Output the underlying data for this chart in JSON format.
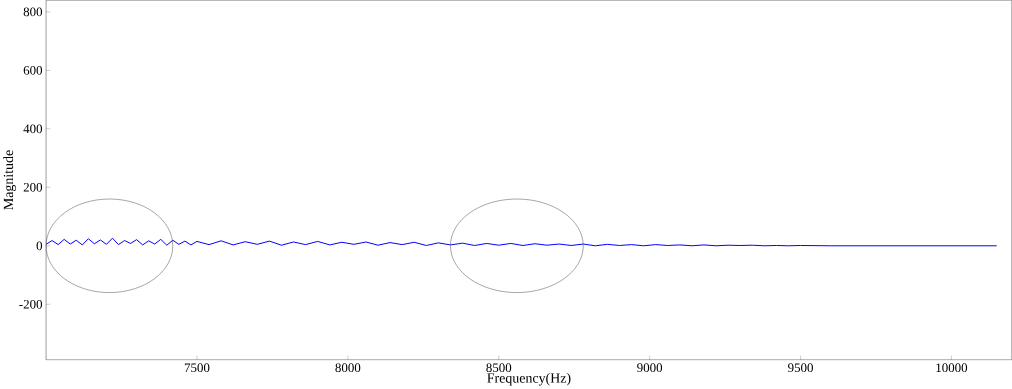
{
  "chart_data": {
    "type": "line",
    "xlabel": "Frequency(Hz)",
    "ylabel": "Magnitude",
    "xlim": [
      7000,
      10200
    ],
    "ylim": [
      -390,
      840
    ],
    "xticks": [
      7500,
      8000,
      8500,
      9000,
      9500,
      10000
    ],
    "yticks": [
      -200,
      0,
      200,
      400,
      600,
      800
    ],
    "grid": false,
    "marker": "none",
    "line_style": "solid",
    "series": [
      {
        "color": "#0000ff",
        "x": [
          7000,
          7020,
          7040,
          7060,
          7080,
          7100,
          7120,
          7140,
          7160,
          7180,
          7200,
          7220,
          7240,
          7260,
          7280,
          7300,
          7320,
          7340,
          7360,
          7380,
          7400,
          7420,
          7440,
          7460,
          7480,
          7500,
          7540,
          7580,
          7620,
          7660,
          7700,
          7740,
          7780,
          7820,
          7860,
          7900,
          7940,
          7980,
          8020,
          8060,
          8100,
          8140,
          8180,
          8220,
          8260,
          8300,
          8340,
          8380,
          8420,
          8460,
          8500,
          8540,
          8580,
          8620,
          8660,
          8700,
          8740,
          8780,
          8820,
          8860,
          8900,
          8940,
          8980,
          9020,
          9060,
          9100,
          9140,
          9180,
          9220,
          9260,
          9300,
          9340,
          9380,
          9420,
          9460,
          9500,
          9600,
          10150
        ],
        "values": [
          5,
          18,
          4,
          22,
          6,
          19,
          3,
          24,
          7,
          20,
          5,
          26,
          4,
          18,
          8,
          21,
          3,
          17,
          6,
          22,
          2,
          19,
          5,
          16,
          3,
          15,
          4,
          17,
          3,
          14,
          5,
          16,
          2,
          13,
          4,
          15,
          3,
          12,
          5,
          13,
          2,
          11,
          4,
          12,
          1,
          10,
          3,
          9,
          1,
          8,
          2,
          8,
          1,
          7,
          2,
          6,
          1,
          6,
          0,
          5,
          1,
          4,
          0,
          4,
          1,
          3,
          0,
          3,
          0,
          2,
          1,
          2,
          0,
          1,
          0,
          1,
          0,
          0
        ]
      }
    ]
  }
}
